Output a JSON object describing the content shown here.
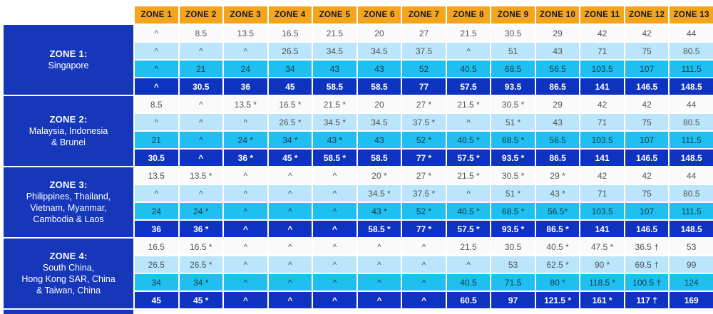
{
  "colors": {
    "header_bg": "#F5A41E",
    "header_text": "#17171F",
    "label_bg": "#1637BA",
    "row_white_bg": "#FAFAFA",
    "row_light_bg": "#BAE5FA",
    "row_cyan_bg": "#1FBFF0",
    "row_dark_bg": "#0F33C1",
    "text_gray": "#54565B",
    "text_navy": "#143A50"
  },
  "chart_data": {
    "type": "table",
    "columns": [
      "ZONE 1",
      "ZONE 2",
      "ZONE 3",
      "ZONE 4",
      "ZONE 5",
      "ZONE 6",
      "ZONE 7",
      "ZONE 8",
      "ZONE 9",
      "ZONE 10",
      "ZONE 11",
      "ZONE 12",
      "ZONE 13"
    ],
    "row_groups": [
      {
        "label": "ZONE 1:",
        "sublabel": [
          "Singapore"
        ],
        "rows": [
          [
            "^",
            "8.5",
            "13.5",
            "16.5",
            "21.5",
            "20",
            "27",
            "21.5",
            "30.5",
            "29",
            "42",
            "42",
            "44"
          ],
          [
            "^",
            "^",
            "^",
            "26.5",
            "34.5",
            "34.5",
            "37.5",
            "^",
            "51",
            "43",
            "71",
            "75",
            "80.5"
          ],
          [
            "^",
            "21",
            "24",
            "34",
            "43",
            "43",
            "52",
            "40.5",
            "68.5",
            "56.5",
            "103.5",
            "107",
            "111.5"
          ],
          [
            "^",
            "30.5",
            "36",
            "45",
            "58.5",
            "58.5",
            "77",
            "57.5",
            "93.5",
            "86.5",
            "141",
            "146.5",
            "148.5"
          ]
        ]
      },
      {
        "label": "ZONE 2:",
        "sublabel": [
          "Malaysia, Indonesia",
          "& Brunei"
        ],
        "rows": [
          [
            "8.5",
            "^",
            "13.5 *",
            "16.5 *",
            "21.5 *",
            "20",
            "27 *",
            "21.5 *",
            "30.5 *",
            "29",
            "42",
            "42",
            "44"
          ],
          [
            "^",
            "^",
            "^",
            "26.5 *",
            "34.5 *",
            "34.5",
            "37.5 *",
            "^",
            "51 *",
            "43",
            "71",
            "75",
            "80.5"
          ],
          [
            "21",
            "^",
            "24 *",
            "34 *",
            "43 *",
            "43",
            "52 *",
            "40.5 *",
            "68.5 *",
            "56.5",
            "103.5",
            "107",
            "111.5"
          ],
          [
            "30.5",
            "^",
            "36 *",
            "45 *",
            "58.5 *",
            "58.5",
            "77 *",
            "57.5 *",
            "93.5 *",
            "86.5",
            "141",
            "146.5",
            "148.5"
          ]
        ]
      },
      {
        "label": "ZONE 3:",
        "sublabel": [
          "Philippines, Thailand,",
          "Vietnam, Myanmar,",
          "Cambodia & Laos"
        ],
        "rows": [
          [
            "13.5",
            "13.5 *",
            "^",
            "^",
            "^",
            "20 *",
            "27 *",
            "21.5 *",
            "30.5 *",
            "29 *",
            "42",
            "42",
            "44"
          ],
          [
            "^",
            "^",
            "^",
            "^",
            "^",
            "34.5 *",
            "37.5 *",
            "^",
            "51 *",
            "43 *",
            "71",
            "75",
            "80.5"
          ],
          [
            "24",
            "24 *",
            "^",
            "^",
            "^",
            "43 *",
            "52 *",
            "40.5 *",
            "68.5 *",
            "56.5*",
            "103.5",
            "107",
            "111.5"
          ],
          [
            "36",
            "36 *",
            "^",
            "^",
            "^",
            "58.5 *",
            "77 *",
            "57.5 *",
            "93.5 *",
            "86.5 *",
            "141",
            "146.5",
            "148.5"
          ]
        ]
      },
      {
        "label": "ZONE 4:",
        "sublabel": [
          "South China,",
          "Hong Kong SAR, China",
          "& Taiwan, China"
        ],
        "rows": [
          [
            "16.5",
            "16.5 *",
            "^",
            "^",
            "^",
            "^",
            "^",
            "21.5",
            "30.5",
            "40.5 *",
            "47.5 *",
            "36.5 †",
            "53"
          ],
          [
            "26.5",
            "26.5 *",
            "^",
            "^",
            "^",
            "^",
            "^",
            "^",
            "53",
            "62.5 *",
            "90 *",
            "69.5 †",
            "99"
          ],
          [
            "34",
            "34 *",
            "^",
            "^",
            "^",
            "^",
            "^",
            "40.5",
            "71.5",
            "80 *",
            "118.5 *",
            "100.5 †",
            "124"
          ],
          [
            "45",
            "45 *",
            "^",
            "^",
            "^",
            "^",
            "^",
            "60.5",
            "97",
            "121.5 *",
            "161 *",
            "117 †",
            "169"
          ]
        ]
      }
    ]
  }
}
